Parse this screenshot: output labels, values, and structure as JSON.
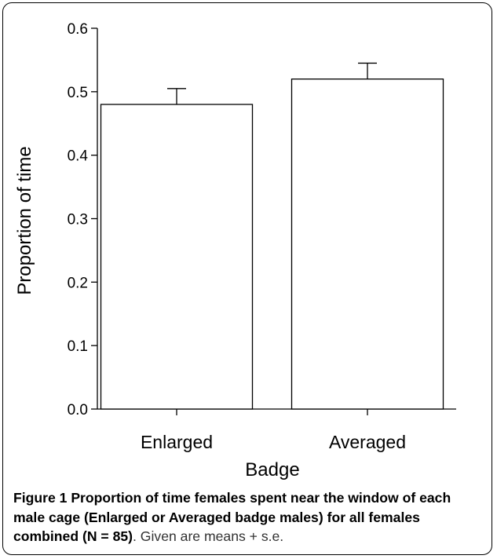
{
  "chart_data": {
    "type": "bar",
    "categories": [
      "Enlarged",
      "Averaged"
    ],
    "values": [
      0.48,
      0.52
    ],
    "errors": [
      0.025,
      0.025
    ],
    "xlabel": "Badge",
    "ylabel": "Proportion of time",
    "ylim": [
      0,
      0.6
    ],
    "yticks": [
      "0.0",
      "0.1",
      "0.2",
      "0.3",
      "0.4",
      "0.5",
      "0.6"
    ],
    "grid": false,
    "bar_fill": "#ffffff",
    "bar_stroke": "#000000"
  },
  "caption": {
    "bold": "Figure 1 Proportion of time females spent near the window of each male cage (Enlarged or Averaged badge males) for all females combined (N = 85)",
    "normal": ". Given are means + s.e."
  }
}
